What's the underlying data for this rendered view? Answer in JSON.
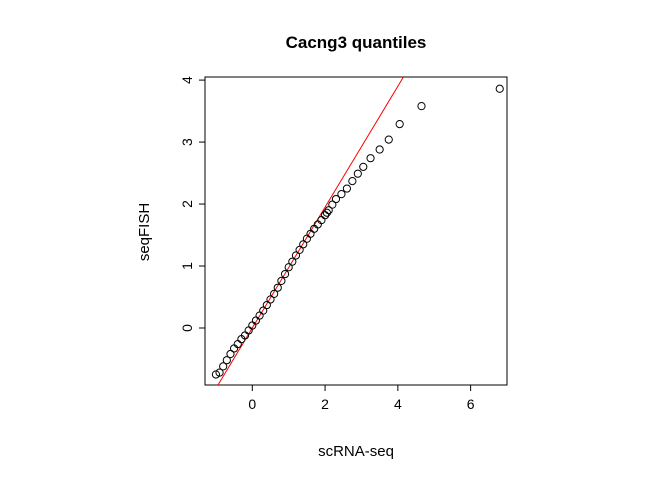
{
  "chart_data": {
    "type": "scatter",
    "title": "Cacng3 quantiles",
    "xlabel": "scRNA-seq",
    "ylabel": "seqFISH",
    "xlim": [
      -1.3,
      7.0
    ],
    "ylim": [
      -0.92,
      4.05
    ],
    "x_ticks": [
      0,
      2,
      4,
      6
    ],
    "y_ticks": [
      0,
      1,
      2,
      3,
      4
    ],
    "grid": false,
    "legend": "none",
    "point_color": "#000000",
    "line_color": "#ff0000",
    "reference_line": {
      "intercept": 0.0,
      "slope": 0.975
    },
    "series": [
      {
        "x": [
          -1.0,
          -0.9,
          -0.8,
          -0.7,
          -0.6,
          -0.5,
          -0.4,
          -0.3,
          -0.2,
          -0.1,
          0.0,
          0.1,
          0.2,
          0.3,
          0.4,
          0.5,
          0.6,
          0.7,
          0.8,
          0.9,
          1.0,
          1.1,
          1.2,
          1.3,
          1.4,
          1.5,
          1.6,
          1.7,
          1.8,
          1.9,
          2.0,
          2.05,
          2.1,
          2.2,
          2.3,
          2.45,
          2.6,
          2.75,
          2.9,
          3.05,
          3.25,
          3.5,
          3.75,
          4.05,
          4.65,
          6.8
        ],
        "y": [
          -0.75,
          -0.72,
          -0.62,
          -0.52,
          -0.42,
          -0.33,
          -0.26,
          -0.18,
          -0.12,
          -0.04,
          0.04,
          0.12,
          0.2,
          0.28,
          0.37,
          0.46,
          0.55,
          0.65,
          0.76,
          0.87,
          0.98,
          1.07,
          1.17,
          1.26,
          1.35,
          1.44,
          1.52,
          1.6,
          1.67,
          1.74,
          1.82,
          1.86,
          1.9,
          1.99,
          2.08,
          2.16,
          2.25,
          2.37,
          2.49,
          2.6,
          2.74,
          2.88,
          3.04,
          3.29,
          3.58,
          3.86
        ]
      }
    ]
  }
}
